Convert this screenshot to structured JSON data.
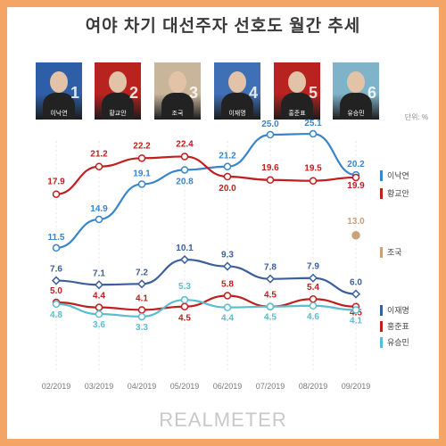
{
  "title": "여야 차기 대선주자 선호도 월간 추세",
  "unit_label": "단위: %",
  "watermark": "REALMETER",
  "candidates": [
    {
      "name": "이낙연",
      "number": "1",
      "color": "#2f5ea8"
    },
    {
      "name": "황교안",
      "number": "2",
      "color": "#b8231f"
    },
    {
      "name": "조국",
      "number": "3",
      "color": "#c8b59a"
    },
    {
      "name": "이재명",
      "number": "4",
      "color": "#3f6fb5"
    },
    {
      "name": "홍준표",
      "number": "5",
      "color": "#b8231f"
    },
    {
      "name": "유승민",
      "number": "6",
      "color": "#7fb3c9"
    }
  ],
  "chart_data": {
    "type": "line",
    "title": "여야 차기 대선주자 선호도 월간 추세",
    "xlabel": "",
    "ylabel": "",
    "categories": [
      "02/2019",
      "03/2019",
      "04/2019",
      "05/2019",
      "06/2019",
      "07/2019",
      "08/2019",
      "09/2019"
    ],
    "grid": false,
    "legend": "right",
    "series": [
      {
        "name": "이낙연",
        "color": "#3a84c9",
        "values": [
          11.5,
          14.9,
          19.1,
          20.8,
          21.2,
          25.0,
          25.1,
          20.2
        ]
      },
      {
        "name": "황교안",
        "color": "#c01f1f",
        "values": [
          17.9,
          21.2,
          22.2,
          22.4,
          20.0,
          19.6,
          19.5,
          19.9
        ]
      },
      {
        "name": "조국",
        "color": "#c8a27a",
        "values": [
          null,
          null,
          null,
          null,
          null,
          null,
          null,
          13.0
        ]
      },
      {
        "name": "이재명",
        "color": "#3b5f9e",
        "values": [
          7.6,
          7.1,
          7.2,
          10.1,
          9.3,
          7.8,
          7.9,
          6.0
        ]
      },
      {
        "name": "홍준표",
        "color": "#c01f1f",
        "values": [
          5.0,
          4.4,
          4.1,
          4.5,
          5.8,
          4.5,
          5.4,
          4.5
        ]
      },
      {
        "name": "유승민",
        "color": "#5bbcd0",
        "values": [
          4.8,
          3.6,
          3.3,
          5.3,
          4.4,
          4.5,
          4.6,
          4.1
        ]
      }
    ],
    "value_labels": [
      [
        "11.5",
        "14.9",
        "19.1",
        "20.8",
        "21.2",
        "25.0",
        "25.1",
        "20.2"
      ],
      [
        "17.9",
        "21.2",
        "22.2",
        "22.4",
        "20.0",
        "19.6",
        "19.5",
        "19.9"
      ],
      [
        "",
        "",
        "",
        "",
        "",
        "",
        "",
        "13.0"
      ],
      [
        "7.6",
        "7.1",
        "7.2",
        "10.1",
        "9.3",
        "7.8",
        "7.9",
        "6.0"
      ],
      [
        "5.0",
        "4.4",
        "4.1",
        "4.5",
        "5.8",
        "4.5",
        "5.4",
        "4.5"
      ],
      [
        "4.8",
        "3.6",
        "3.3",
        "5.3",
        "4.4",
        "4.5",
        "4.6",
        "4.1"
      ]
    ]
  }
}
